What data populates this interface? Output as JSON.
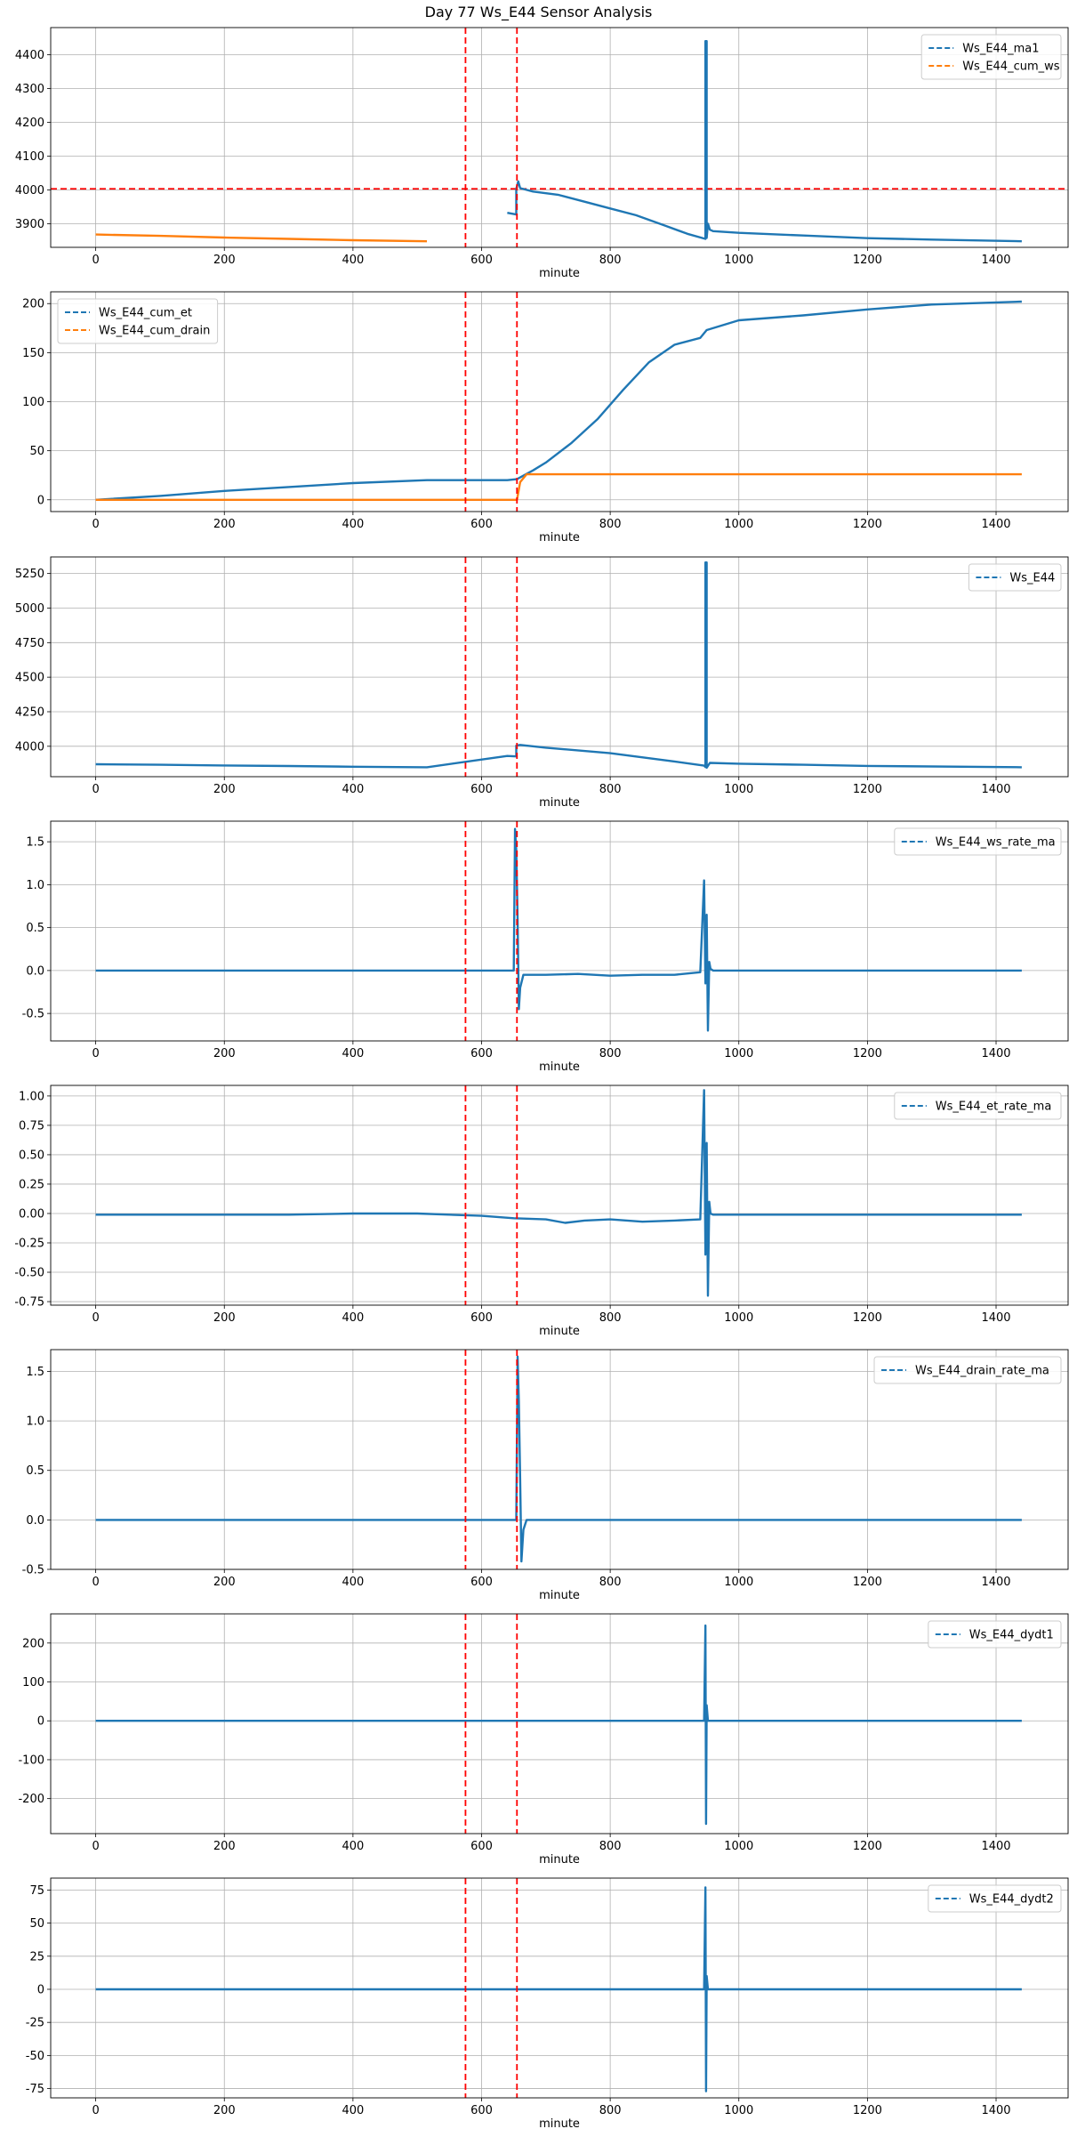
{
  "title": "Day 77 Ws_E44 Sensor Analysis",
  "colors": {
    "series1": "#1f77b4",
    "series2": "#ff7f0e",
    "marker": "#ff0000",
    "grid": "#b0b0b0"
  },
  "chart_data": [
    {
      "type": "line",
      "xlabel": "minute",
      "xlim": [
        -70,
        1512
      ],
      "ylim": [
        3830,
        4480
      ],
      "xticks": [
        0,
        200,
        400,
        600,
        800,
        1000,
        1200,
        1400
      ],
      "yticks": [
        3900,
        4000,
        4100,
        4200,
        4300,
        4400
      ],
      "vlines": [
        575,
        655
      ],
      "hlines": [
        4003
      ],
      "legend_position": "top-right",
      "grid": true,
      "series": [
        {
          "name": "Ws_E44_ma1",
          "x": [
            640,
            654,
            654,
            657,
            660,
            680,
            720,
            760,
            800,
            840,
            880,
            920,
            948,
            948,
            950,
            950,
            952,
            955,
            960,
            1000,
            1100,
            1200,
            1300,
            1440
          ],
          "y": [
            3932,
            3927,
            4003,
            4025,
            4005,
            3995,
            3985,
            3965,
            3945,
            3925,
            3898,
            3870,
            3855,
            4440,
            4440,
            3858,
            3900,
            3882,
            3878,
            3873,
            3865,
            3857,
            3853,
            3848
          ]
        },
        {
          "name": "Ws_E44_cum_ws",
          "x": [
            0,
            100,
            200,
            300,
            400,
            515
          ],
          "y": [
            3868,
            3864,
            3859,
            3855,
            3851,
            3848
          ]
        }
      ]
    },
    {
      "type": "line",
      "xlabel": "minute",
      "xlim": [
        -70,
        1512
      ],
      "ylim": [
        -12,
        212
      ],
      "xticks": [
        0,
        200,
        400,
        600,
        800,
        1000,
        1200,
        1400
      ],
      "yticks": [
        0,
        50,
        100,
        150,
        200
      ],
      "vlines": [
        575,
        655
      ],
      "legend_position": "top-left",
      "grid": true,
      "series": [
        {
          "name": "Ws_E44_cum_et",
          "x": [
            0,
            100,
            200,
            300,
            400,
            515,
            640,
            655,
            680,
            700,
            740,
            780,
            820,
            860,
            900,
            940,
            950,
            1000,
            1100,
            1200,
            1300,
            1440
          ],
          "y": [
            0,
            4,
            9,
            13,
            17,
            20,
            20,
            21,
            30,
            38,
            58,
            82,
            112,
            140,
            158,
            165,
            173,
            183,
            188,
            194,
            199,
            202
          ]
        },
        {
          "name": "Ws_E44_cum_drain",
          "x": [
            0,
            100,
            200,
            300,
            400,
            515,
            640,
            655,
            660,
            670,
            700,
            800,
            1000,
            1200,
            1440
          ],
          "y": [
            0,
            0,
            0,
            0,
            0,
            0,
            0,
            0,
            18,
            26,
            26,
            26,
            26,
            26,
            26
          ]
        }
      ]
    },
    {
      "type": "line",
      "xlabel": "minute",
      "xlim": [
        -70,
        1512
      ],
      "ylim": [
        3780,
        5370
      ],
      "xticks": [
        0,
        200,
        400,
        600,
        800,
        1000,
        1200,
        1400
      ],
      "yticks": [
        4000,
        4250,
        4500,
        4750,
        5000,
        5250
      ],
      "vlines": [
        575,
        655
      ],
      "legend_position": "top-right",
      "grid": true,
      "series": [
        {
          "name": "Ws_E44",
          "x": [
            0,
            100,
            200,
            300,
            400,
            515,
            640,
            654,
            654,
            660,
            700,
            800,
            900,
            946,
            948,
            948,
            950,
            950,
            955,
            1000,
            1100,
            1200,
            1440
          ],
          "y": [
            3870,
            3866,
            3861,
            3857,
            3852,
            3848,
            3930,
            3927,
            4005,
            4010,
            3990,
            3950,
            3890,
            3860,
            3850,
            5330,
            5330,
            3845,
            3880,
            3874,
            3866,
            3858,
            3848
          ]
        }
      ]
    },
    {
      "type": "line",
      "xlabel": "minute",
      "xlim": [
        -70,
        1512
      ],
      "ylim": [
        -0.82,
        1.74
      ],
      "xticks": [
        0,
        200,
        400,
        600,
        800,
        1000,
        1200,
        1400
      ],
      "yticks": [
        -0.5,
        0.0,
        0.5,
        1.0,
        1.5
      ],
      "vlines": [
        575,
        655
      ],
      "legend_position": "top-right",
      "grid": true,
      "series": [
        {
          "name": "Ws_E44_ws_rate_ma",
          "x": [
            0,
            100,
            200,
            300,
            400,
            500,
            510,
            650,
            652,
            654,
            656,
            658,
            660,
            665,
            670,
            700,
            750,
            800,
            850,
            900,
            940,
            946,
            948,
            950,
            952,
            954,
            956,
            960,
            1000,
            1100,
            1200,
            1300,
            1440
          ],
          "y": [
            0,
            0,
            0,
            0,
            0,
            0,
            0,
            0,
            1.65,
            1.4,
            0.6,
            -0.45,
            -0.2,
            -0.05,
            -0.05,
            -0.05,
            -0.04,
            -0.06,
            -0.05,
            -0.05,
            -0.02,
            1.05,
            -0.15,
            0.65,
            -0.7,
            0.1,
            0.02,
            0,
            0,
            0,
            0,
            0,
            0
          ]
        }
      ]
    },
    {
      "type": "line",
      "xlabel": "minute",
      "xlim": [
        -70,
        1512
      ],
      "ylim": [
        -0.78,
        1.09
      ],
      "xticks": [
        0,
        200,
        400,
        600,
        800,
        1000,
        1200,
        1400
      ],
      "yticks": [
        -0.75,
        -0.5,
        -0.25,
        0.0,
        0.25,
        0.5,
        0.75,
        1.0
      ],
      "vlines": [
        575,
        655
      ],
      "legend_position": "top-right",
      "grid": true,
      "series": [
        {
          "name": "Ws_E44_et_rate_ma",
          "x": [
            0,
            100,
            200,
            300,
            400,
            500,
            600,
            650,
            700,
            730,
            760,
            800,
            850,
            900,
            940,
            946,
            948,
            950,
            952,
            954,
            956,
            960,
            1000,
            1100,
            1200,
            1300,
            1440
          ],
          "y": [
            -0.01,
            -0.01,
            -0.01,
            -0.01,
            0,
            0,
            -0.02,
            -0.04,
            -0.05,
            -0.08,
            -0.06,
            -0.05,
            -0.07,
            -0.06,
            -0.05,
            1.05,
            -0.35,
            0.6,
            -0.7,
            0.1,
            0.0,
            -0.01,
            -0.01,
            -0.01,
            -0.01,
            -0.01,
            -0.01
          ]
        }
      ]
    },
    {
      "type": "line",
      "xlabel": "minute",
      "xlim": [
        -70,
        1512
      ],
      "ylim": [
        -0.5,
        1.72
      ],
      "xticks": [
        0,
        200,
        400,
        600,
        800,
        1000,
        1200,
        1400
      ],
      "yticks": [
        -0.5,
        0.0,
        0.5,
        1.0,
        1.5
      ],
      "vlines": [
        575,
        655
      ],
      "legend_position": "top-right",
      "grid": true,
      "series": [
        {
          "name": "Ws_E44_drain_rate_ma",
          "x": [
            0,
            100,
            200,
            300,
            400,
            510,
            650,
            654,
            656,
            658,
            660,
            662,
            665,
            670,
            700,
            800,
            1000,
            1200,
            1440
          ],
          "y": [
            0,
            0,
            0,
            0,
            0,
            0,
            0,
            0,
            1.65,
            1.2,
            0.4,
            -0.42,
            -0.1,
            0,
            0,
            0,
            0,
            0,
            0
          ]
        }
      ]
    },
    {
      "type": "line",
      "xlabel": "minute",
      "xlim": [
        -70,
        1512
      ],
      "ylim": [
        -290,
        275
      ],
      "xticks": [
        0,
        200,
        400,
        600,
        800,
        1000,
        1200,
        1400
      ],
      "yticks": [
        -200,
        -100,
        0,
        100,
        200
      ],
      "vlines": [
        575,
        655
      ],
      "legend_position": "top-right",
      "grid": true,
      "series": [
        {
          "name": "Ws_E44_dydt1",
          "x": [
            0,
            200,
            400,
            515,
            640,
            654,
            700,
            900,
            946,
            948,
            949,
            950,
            952,
            1000,
            1200,
            1440
          ],
          "y": [
            0,
            0,
            0,
            0,
            0,
            0,
            0,
            0,
            0,
            245,
            -265,
            40,
            0,
            0,
            0,
            0
          ]
        }
      ]
    },
    {
      "type": "line",
      "xlabel": "minute",
      "xlim": [
        -70,
        1512
      ],
      "ylim": [
        -82,
        84
      ],
      "xticks": [
        0,
        200,
        400,
        600,
        800,
        1000,
        1200,
        1400
      ],
      "yticks": [
        -75,
        -50,
        -25,
        0,
        25,
        50,
        75
      ],
      "vlines": [
        575,
        655
      ],
      "legend_position": "top-right",
      "grid": true,
      "series": [
        {
          "name": "Ws_E44_dydt2",
          "x": [
            0,
            200,
            400,
            515,
            640,
            654,
            700,
            900,
            946,
            948,
            949,
            950,
            952,
            1000,
            1200,
            1440
          ],
          "y": [
            0,
            0,
            0,
            0,
            0,
            0,
            0,
            0,
            0,
            77,
            -77,
            10,
            0,
            0,
            0,
            0
          ]
        }
      ]
    }
  ]
}
